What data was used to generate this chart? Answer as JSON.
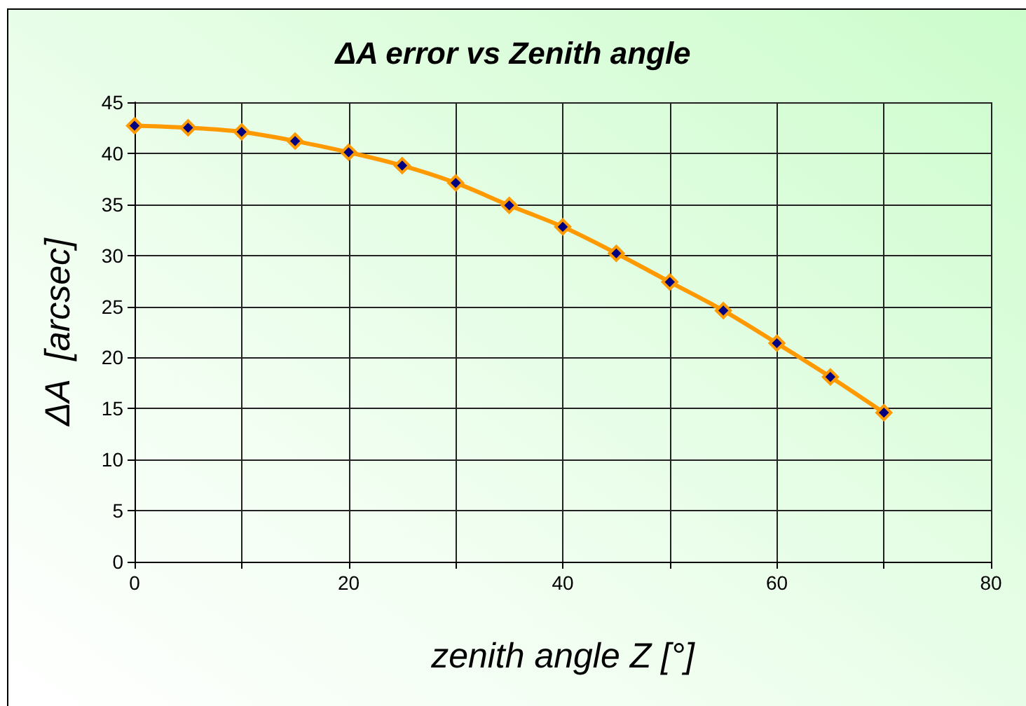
{
  "chart_data": {
    "type": "line",
    "title": "ΔA error vs Zenith angle",
    "xlabel": "zenith angle Z [°]",
    "ylabel": "ΔA  [arcsec]",
    "x": [
      0,
      5,
      10,
      15,
      20,
      25,
      30,
      35,
      40,
      45,
      50,
      55,
      60,
      65,
      70
    ],
    "series": [
      {
        "color": "#ff9900",
        "values": [
          42.7,
          42.5,
          42.1,
          41.2,
          40.1,
          38.8,
          37.1,
          34.9,
          32.8,
          30.2,
          27.4,
          24.6,
          21.4,
          18.1,
          14.6
        ]
      }
    ],
    "xlim": [
      0,
      80
    ],
    "xticks": [
      0,
      {
        "value": 10,
        "label": null
      },
      20,
      {
        "value": 30,
        "label": null
      },
      40,
      {
        "value": 50,
        "label": null
      },
      60,
      {
        "value": 70,
        "label": null
      },
      80
    ],
    "ylim": [
      0,
      45
    ],
    "yticks": [
      0,
      5,
      10,
      15,
      20,
      25,
      30,
      35,
      40,
      45
    ],
    "grid": true,
    "marker": "diamond",
    "line_style": "solid"
  }
}
